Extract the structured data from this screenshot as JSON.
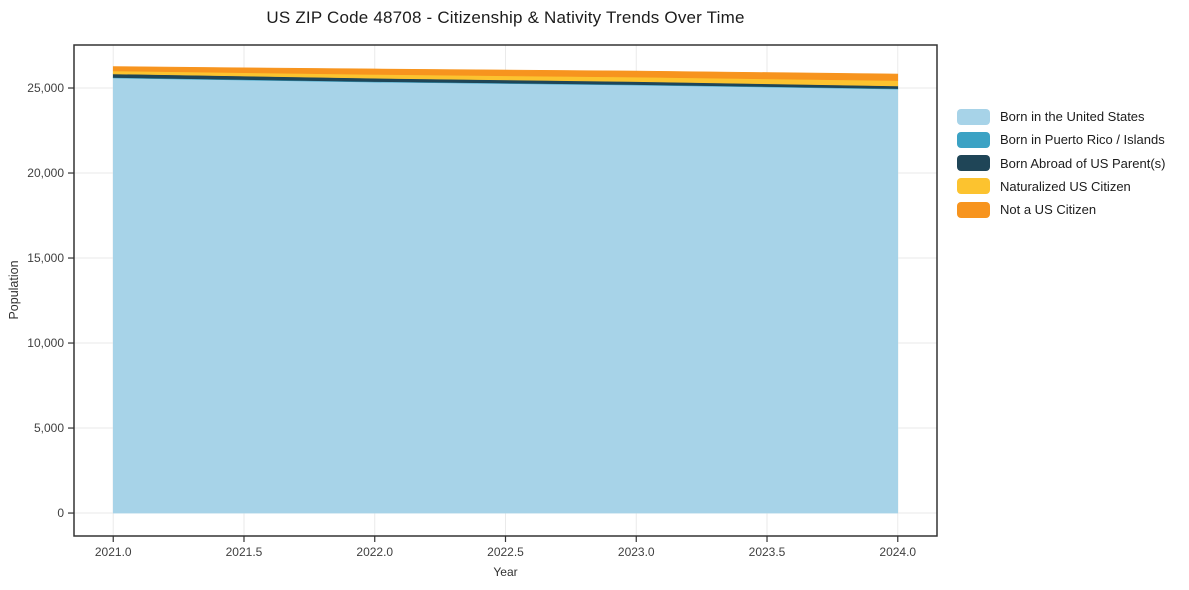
{
  "figure": {
    "background": "#ffffff"
  },
  "chart_data": {
    "type": "area",
    "stacked": true,
    "title": "US ZIP Code 48708 - Citizenship & Nativity Trends Over Time",
    "xlabel": "Year",
    "ylabel": "Population",
    "x": [
      2021,
      2022,
      2023,
      2024
    ],
    "series": [
      {
        "name": "Born in the United States",
        "color": "#a7d3e8",
        "values": [
          25590,
          25350,
          25175,
          24940
        ]
      },
      {
        "name": "Born in Puerto Rico / Islands",
        "color": "#3ba2c4",
        "values": [
          30,
          30,
          30,
          30
        ]
      },
      {
        "name": "Born Abroad of US Parent(s)",
        "color": "#1f4557",
        "values": [
          210,
          195,
          175,
          150
        ]
      },
      {
        "name": "Naturalized US Citizen",
        "color": "#fcc32f",
        "values": [
          175,
          225,
          260,
          320
        ]
      },
      {
        "name": "Not a US Citizen",
        "color": "#f7941e",
        "values": [
          255,
          320,
          360,
          380
        ]
      }
    ],
    "x_ticks": [
      2021.0,
      2021.5,
      2022.0,
      2022.5,
      2023.0,
      2023.5,
      2024.0
    ],
    "x_tick_labels": [
      "2021.0",
      "2021.5",
      "2022.0",
      "2022.5",
      "2023.0",
      "2023.5",
      "2024.0"
    ],
    "y_ticks": [
      0,
      5000,
      10000,
      15000,
      20000,
      25000
    ],
    "y_tick_labels": [
      "0",
      "5,000",
      "10,000",
      "15,000",
      "20,000",
      "25,000"
    ],
    "xlim": [
      2020.85,
      2024.15
    ],
    "ylim": [
      -1350,
      27530
    ],
    "grid": true,
    "legend_position": "right-outside",
    "colors": {
      "grid": "#eaeaea",
      "frame": "#333333",
      "tick_text": "#404040",
      "title_text": "#1c1c1c"
    }
  }
}
